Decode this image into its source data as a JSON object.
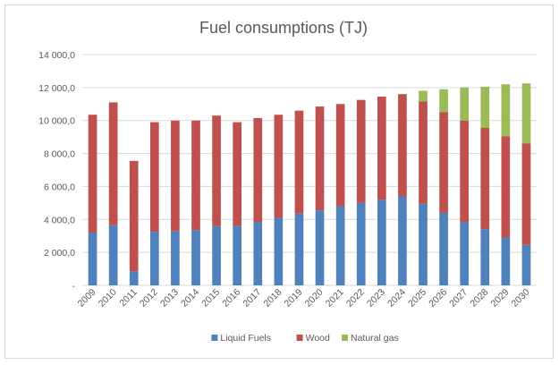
{
  "chart_data": {
    "type": "bar",
    "stacked": true,
    "title": "Fuel consumptions (TJ)",
    "xlabel": "",
    "ylabel": "",
    "ylim": [
      0,
      14000
    ],
    "yticks": [
      0,
      2000,
      4000,
      6000,
      8000,
      10000,
      12000,
      14000
    ],
    "ytick_labels": [
      "-",
      "2 000,0",
      "4 000,0",
      "6 000,0",
      "8 000,0",
      "10 000,0",
      "12 000,0",
      "14 000,0"
    ],
    "grid": true,
    "legend_position": "bottom",
    "categories": [
      "2009",
      "2010",
      "2011",
      "2012",
      "2013",
      "2014",
      "2015",
      "2016",
      "2017",
      "2018",
      "2019",
      "2020",
      "2021",
      "2022",
      "2023",
      "2024",
      "2025",
      "2026",
      "2027",
      "2028",
      "2029",
      "2030"
    ],
    "series": [
      {
        "name": "Liquid Fuels",
        "color": "#4f81bd",
        "values": [
          3200,
          3650,
          850,
          3250,
          3300,
          3350,
          3600,
          3600,
          3850,
          4100,
          4350,
          4550,
          4800,
          5000,
          5200,
          5400,
          4950,
          4400,
          3850,
          3400,
          2900,
          2450
        ]
      },
      {
        "name": "Wood",
        "color": "#c0504d",
        "values": [
          7150,
          7450,
          6700,
          6650,
          6700,
          6650,
          6700,
          6300,
          6300,
          6250,
          6250,
          6300,
          6200,
          6250,
          6250,
          6200,
          6200,
          6100,
          6150,
          6150,
          6150,
          6150
        ]
      },
      {
        "name": "Natural gas",
        "color": "#9bbb59",
        "values": [
          0,
          0,
          0,
          0,
          0,
          0,
          0,
          0,
          0,
          0,
          0,
          0,
          0,
          0,
          0,
          0,
          650,
          1400,
          2000,
          2500,
          3150,
          3650
        ]
      }
    ]
  }
}
